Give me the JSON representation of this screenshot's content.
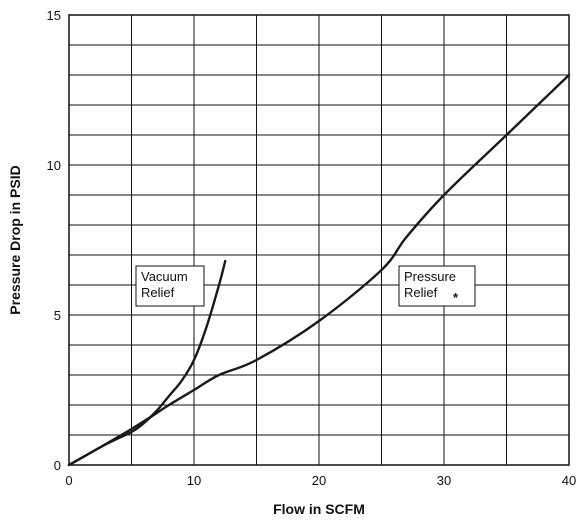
{
  "chart_data": {
    "type": "line",
    "xlabel": "Flow in SCFM",
    "ylabel": "Pressure Drop in PSID",
    "xlim": [
      0,
      40
    ],
    "ylim": [
      0,
      15
    ],
    "x_ticks": [
      0,
      10,
      20,
      30,
      40
    ],
    "y_ticks": [
      0,
      5,
      10,
      15
    ],
    "x_grid_step": 5,
    "y_grid_step": 1,
    "grid": true,
    "series": [
      {
        "name": "Vacuum Relief",
        "x": [
          0,
          3,
          5,
          6,
          7,
          8,
          9,
          10,
          11,
          12,
          12.5
        ],
        "y": [
          0,
          0.7,
          1.1,
          1.4,
          1.8,
          2.3,
          2.8,
          3.5,
          4.6,
          6.0,
          6.8
        ]
      },
      {
        "name": "Pressure Relief",
        "x": [
          0,
          5,
          8,
          10,
          12,
          15,
          20,
          25,
          27,
          30,
          35,
          40
        ],
        "y": [
          0,
          1.2,
          2.0,
          2.5,
          3.0,
          3.5,
          4.8,
          6.5,
          7.6,
          9.0,
          11.0,
          13.0
        ]
      }
    ],
    "annotations": [
      {
        "id": "vacuum",
        "lines": [
          "Vacuum",
          "Relief"
        ],
        "marker": ""
      },
      {
        "id": "pressure",
        "lines": [
          "Pressure",
          "Relief"
        ],
        "marker": "*"
      }
    ]
  }
}
